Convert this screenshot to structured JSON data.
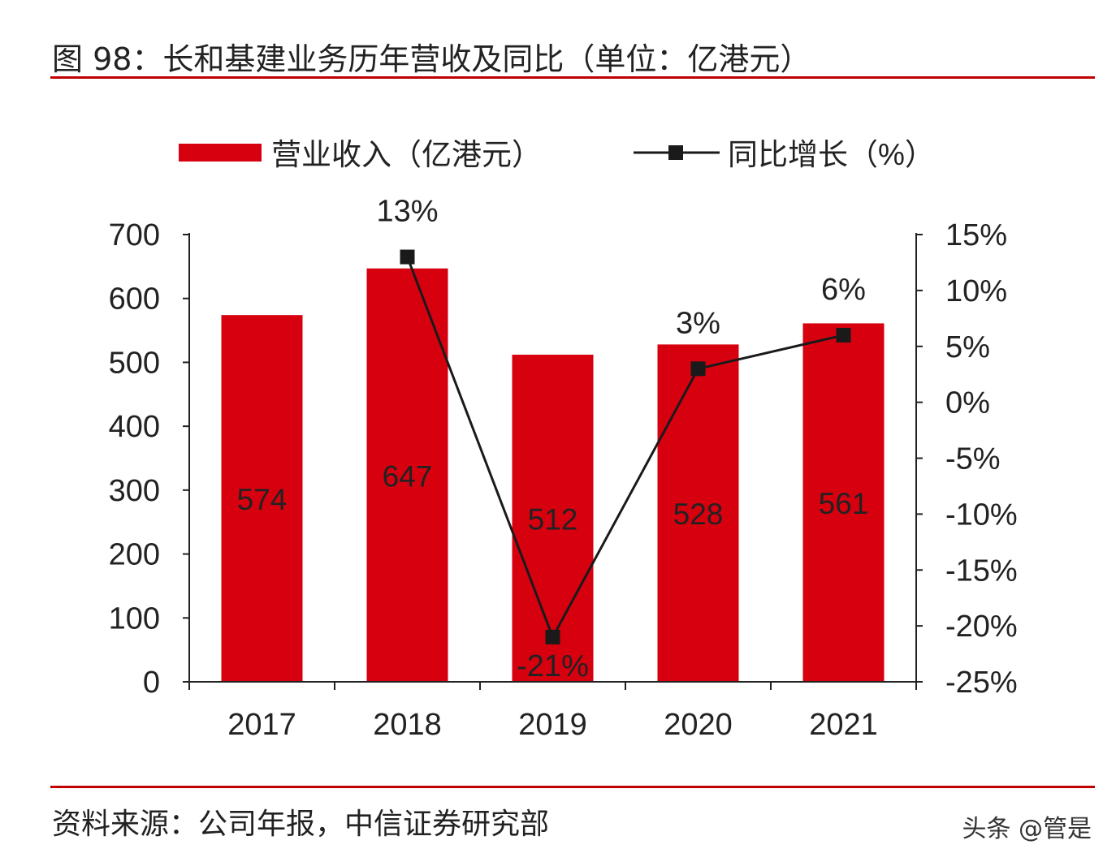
{
  "header": {
    "title": "图 98：长和基建业务历年营收及同比（单位：亿港元）"
  },
  "footer": {
    "source": "资料来源：公司年报，中信证券研究部",
    "watermark": "头条 @管是"
  },
  "colors": {
    "bar": "#d7000f",
    "line": "#1a1a1a",
    "rule": "#c00000"
  },
  "chart_data": {
    "type": "bar+line",
    "categories": [
      "2017",
      "2018",
      "2019",
      "2020",
      "2021"
    ],
    "series": [
      {
        "name": "营业收入（亿港元）",
        "type": "bar",
        "axis": "left",
        "values": [
          574,
          647,
          512,
          528,
          561
        ],
        "labels": [
          "574",
          "647",
          "512",
          "528",
          "561"
        ]
      },
      {
        "name": "同比增长（%）",
        "type": "line",
        "axis": "right",
        "marker": "square",
        "values": [
          null,
          13,
          -21,
          3,
          6
        ],
        "labels": [
          "",
          "13%",
          "-21%",
          "3%",
          "6%"
        ]
      }
    ],
    "left_axis": {
      "ylim": [
        0,
        700
      ],
      "ticks": [
        "0",
        "100",
        "200",
        "300",
        "400",
        "500",
        "600",
        "700"
      ]
    },
    "right_axis": {
      "ylim": [
        -25,
        15
      ],
      "ticks": [
        "-25%",
        "-20%",
        "-15%",
        "-10%",
        "-5%",
        "0%",
        "5%",
        "10%",
        "15%"
      ]
    },
    "legend": "top",
    "grid": false
  }
}
